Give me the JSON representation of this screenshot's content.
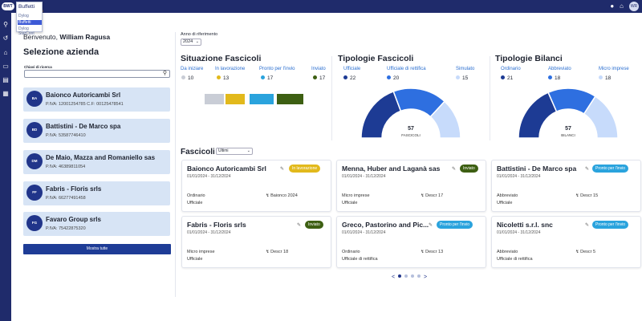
{
  "app": {
    "logo_text": "BWT"
  },
  "dropdown": {
    "title": "Buffetti",
    "options": [
      {
        "label": "Dylog",
        "selected": false
      },
      {
        "label": "Buffetti",
        "selected": true
      },
      {
        "label": "Dylog StarCont",
        "selected": false
      }
    ]
  },
  "topbar": {
    "icons": [
      "help-icon",
      "notifications-icon"
    ],
    "avatar": "WR"
  },
  "sidebar": {
    "icons": [
      "search-icon",
      "history-icon",
      "home-icon",
      "folder-icon",
      "archive-icon",
      "grid-icon"
    ]
  },
  "left": {
    "welcome_prefix": "Benvenuto,",
    "welcome_name": "William Ragusa",
    "title": "Selezione azienda",
    "search_label": "Chiavi di ricerca",
    "companies": [
      {
        "initials": "BA",
        "name": "Baionco Autoricambi Srl",
        "piva": "P.IVA: 12001254785  C.F: 00125478541"
      },
      {
        "initials": "BD",
        "name": "Battistini - De Marco spa",
        "piva": "P.IVA: 53587746410"
      },
      {
        "initials": "DM",
        "name": "De Maio, Mazza and Romaniello sas",
        "piva": "P.IVA: 46389811054"
      },
      {
        "initials": "FF",
        "name": "Fabris - Floris srls",
        "piva": "P.IVA: 66277491458"
      },
      {
        "initials": "FG",
        "name": "Favaro Group srls",
        "piva": "P.IVA: 75422875320"
      }
    ],
    "show_all": "Mostra tutte"
  },
  "filters": {
    "year_label": "Anno di riferimento",
    "year_value": "2024"
  },
  "situazione": {
    "title": "Situazione Fascicoli",
    "items": [
      {
        "label": "Da iniziare",
        "value": "10",
        "color": "#c9cdd6"
      },
      {
        "label": "In lavorazione",
        "value": "13",
        "color": "#e2b91c"
      },
      {
        "label": "Pronto per l'invio",
        "value": "17",
        "color": "#2aa3dd"
      },
      {
        "label": "Inviato",
        "value": "17",
        "color": "#3d5f12"
      }
    ]
  },
  "tipologie_fascicoli": {
    "title": "Tipologie Fascicoli",
    "items": [
      {
        "label": "Ufficiale",
        "value": "22",
        "color": "#1d3b94"
      },
      {
        "label": "Ufficiale di rettifica",
        "value": "20",
        "color": "#2e6fe0"
      },
      {
        "label": "Simulato",
        "value": "15",
        "color": "#c7dbfb"
      }
    ],
    "total": "57",
    "total_label": "FASCICOLI"
  },
  "tipologie_bilanci": {
    "title": "Tipologie Bilanci",
    "items": [
      {
        "label": "Ordinario",
        "value": "21",
        "color": "#1d3b94"
      },
      {
        "label": "Abbreviato",
        "value": "18",
        "color": "#2e6fe0"
      },
      {
        "label": "Micro imprese",
        "value": "18",
        "color": "#c7dbfb"
      }
    ],
    "total": "57",
    "total_label": "BILANCI"
  },
  "fascicoli": {
    "title": "Fascicoli",
    "filter_value": "Ultimi",
    "cards": [
      {
        "name": "Baionco Autoricambi Srl",
        "date": "01/01/2024 - 31/12/2024",
        "status": "In lavorazione",
        "status_bg": "#e2b91c",
        "status_fg": "#ffffff",
        "type": "Ordinario",
        "category": "Ufficiale",
        "desc": "Baionco 2024"
      },
      {
        "name": "Menna, Huber and Laganà sas",
        "date": "01/01/2024 - 31/12/2024",
        "status": "Inviato",
        "status_bg": "#3d5f12",
        "status_fg": "#ffffff",
        "type": "Micro imprese",
        "category": "Ufficiale",
        "desc": "Descr 17"
      },
      {
        "name": "Battistini - De Marco spa",
        "date": "01/01/2024 - 31/12/2024",
        "status": "Pronto per l'invio",
        "status_bg": "#2aa3dd",
        "status_fg": "#ffffff",
        "type": "Abbreviato",
        "category": "Ufficiale",
        "desc": "Descr 15"
      },
      {
        "name": "Fabris - Floris srls",
        "date": "01/01/2024 - 31/12/2024",
        "status": "Inviato",
        "status_bg": "#3d5f12",
        "status_fg": "#ffffff",
        "type": "Micro imprese",
        "category": "Ufficiale",
        "desc": "Descr 18"
      },
      {
        "name": "Greco, Pastorino and Pic...",
        "date": "01/01/2024 - 31/12/2024",
        "status": "Pronto per l'invio",
        "status_bg": "#2aa3dd",
        "status_fg": "#ffffff",
        "type": "Ordinario",
        "category": "Ufficiale di rettifica",
        "desc": "Descr 13"
      },
      {
        "name": "Nicoletti s.r.l. snc",
        "date": "01/01/2024 - 31/12/2024",
        "status": "Pronto per l'invio",
        "status_bg": "#2aa3dd",
        "status_fg": "#ffffff",
        "type": "Abbreviato",
        "category": "Ufficiale di rettifica",
        "desc": "Descr 5"
      }
    ],
    "pager": {
      "prev": "<",
      "next": ">",
      "pages": 4,
      "active": 0
    }
  }
}
